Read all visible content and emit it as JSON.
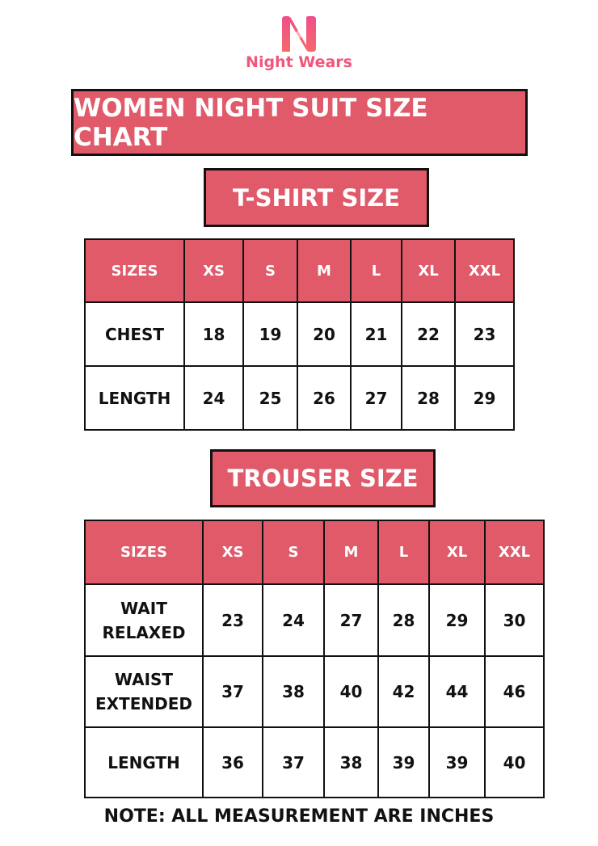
{
  "brand": {
    "name": "Night Wears",
    "color": "#f0567a"
  },
  "title": "WOMEN NIGHT SUIT SIZE CHART",
  "accent": "#e05a6a",
  "tshirt": {
    "heading": "T-SHIRT SIZE",
    "headers": [
      "SIZES",
      "XS",
      "S",
      "M",
      "L",
      "XL",
      "XXL"
    ],
    "rows": [
      {
        "label": "CHEST",
        "values": [
          "18",
          "19",
          "20",
          "21",
          "22",
          "23"
        ]
      },
      {
        "label": "LENGTH",
        "values": [
          "24",
          "25",
          "26",
          "27",
          "28",
          "29"
        ]
      }
    ]
  },
  "trouser": {
    "heading": "TROUSER SIZE",
    "headers": [
      "SIZES",
      "XS",
      "S",
      "M",
      "L",
      "XL",
      "XXL"
    ],
    "rows": [
      {
        "label": "WAIT RELAXED",
        "values": [
          "23",
          "24",
          "27",
          "28",
          "29",
          "30"
        ]
      },
      {
        "label": "WAIST EXTENDED",
        "values": [
          "37",
          "38",
          "40",
          "42",
          "44",
          "46"
        ]
      },
      {
        "label": "LENGTH",
        "values": [
          "36",
          "37",
          "38",
          "39",
          "39",
          "40"
        ]
      }
    ]
  },
  "note": "NOTE: ALL MEASUREMENT ARE INCHES"
}
